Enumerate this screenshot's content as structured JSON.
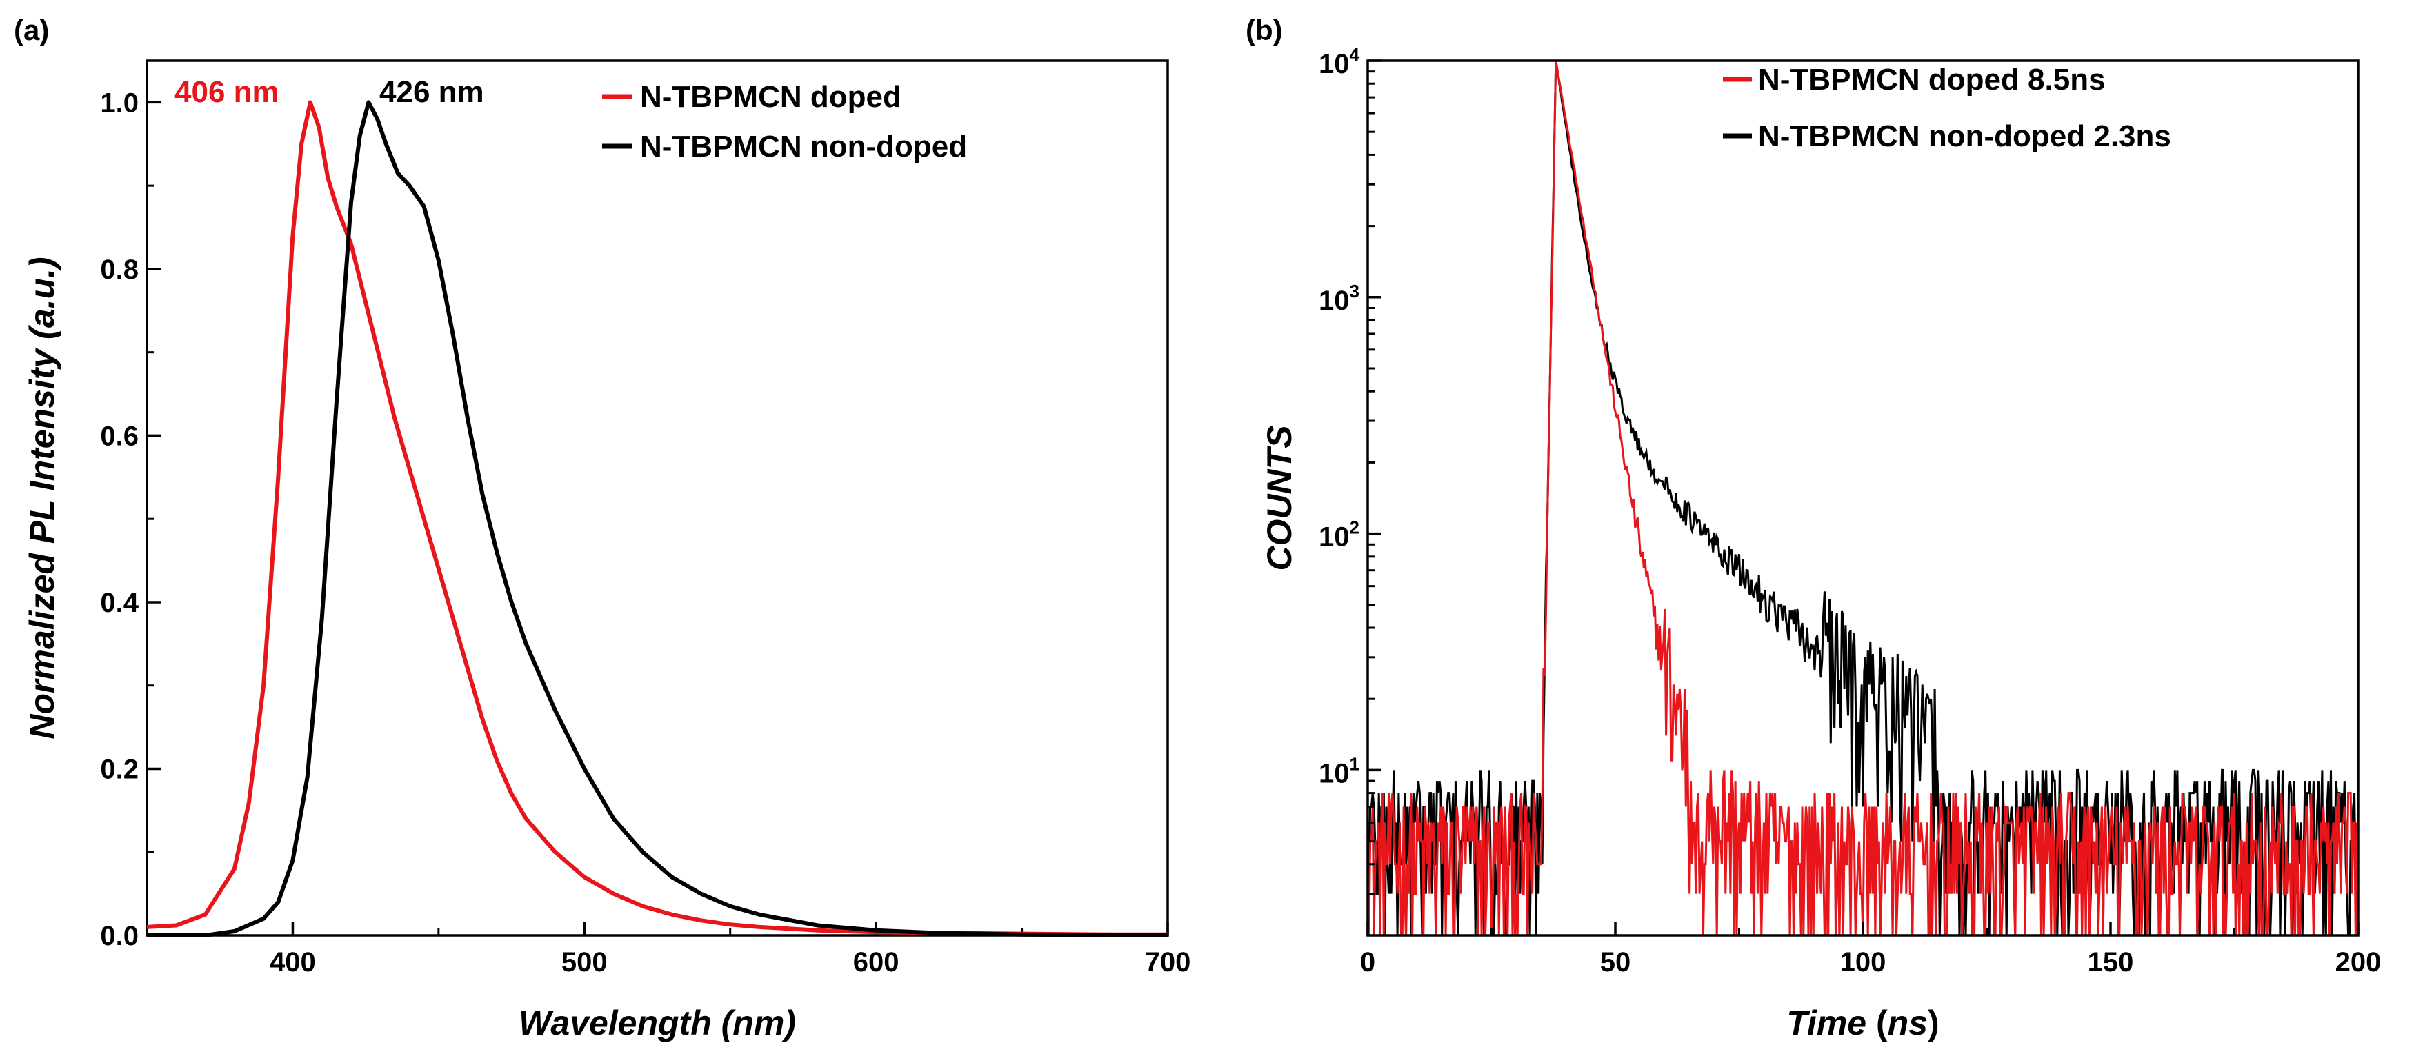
{
  "chart_data": [
    {
      "panel_label": "(a)",
      "type": "line",
      "xlabel": "Wavelength (nm)",
      "ylabel": "Normalized PL Intensity (a.u.)",
      "xlim": [
        350,
        700
      ],
      "ylim": [
        0,
        1.05
      ],
      "xticks": [
        "400",
        "500",
        "600",
        "700"
      ],
      "yticks": [
        "0.0",
        "0.2",
        "0.4",
        "0.6",
        "0.8",
        "1.0"
      ],
      "annotations": [
        {
          "text": "406 nm",
          "color": "#e8151b"
        },
        {
          "text": "426 nm",
          "color": "#000000"
        }
      ],
      "legend": "top-right",
      "series": [
        {
          "name": "N-TBPMCN doped",
          "color": "#e8151b",
          "x": [
            350,
            360,
            370,
            380,
            385,
            390,
            395,
            400,
            403,
            406,
            409,
            412,
            415,
            420,
            425,
            430,
            435,
            440,
            445,
            450,
            455,
            460,
            465,
            470,
            475,
            480,
            490,
            500,
            510,
            520,
            530,
            540,
            550,
            560,
            570,
            580,
            600,
            620,
            650,
            680,
            700
          ],
          "y": [
            0.01,
            0.012,
            0.025,
            0.08,
            0.16,
            0.3,
            0.55,
            0.84,
            0.95,
            1.0,
            0.97,
            0.91,
            0.875,
            0.83,
            0.76,
            0.69,
            0.62,
            0.56,
            0.5,
            0.44,
            0.38,
            0.32,
            0.26,
            0.21,
            0.17,
            0.14,
            0.1,
            0.07,
            0.05,
            0.035,
            0.025,
            0.018,
            0.013,
            0.01,
            0.008,
            0.006,
            0.004,
            0.003,
            0.002,
            0.001,
            0.001
          ]
        },
        {
          "name": "N-TBPMCN non-doped",
          "color": "#000000",
          "x": [
            350,
            370,
            380,
            390,
            395,
            400,
            405,
            410,
            415,
            420,
            423,
            426,
            429,
            432,
            436,
            440,
            445,
            450,
            455,
            460,
            465,
            470,
            475,
            480,
            490,
            500,
            510,
            520,
            530,
            540,
            550,
            560,
            580,
            600,
            620,
            650,
            700
          ],
          "y": [
            0.0,
            0.0,
            0.005,
            0.02,
            0.04,
            0.09,
            0.19,
            0.38,
            0.64,
            0.88,
            0.96,
            1.0,
            0.98,
            0.95,
            0.915,
            0.9,
            0.875,
            0.81,
            0.72,
            0.62,
            0.53,
            0.46,
            0.4,
            0.35,
            0.27,
            0.2,
            0.14,
            0.1,
            0.07,
            0.05,
            0.035,
            0.025,
            0.012,
            0.006,
            0.003,
            0.001,
            0.0
          ]
        }
      ]
    },
    {
      "panel_label": "(b)",
      "type": "line",
      "xlabel_main": "Time",
      "xlabel_unit": "ns",
      "ylabel": "COUNTS",
      "yscale": "log",
      "xlim": [
        0,
        200
      ],
      "ylim": [
        2,
        10000
      ],
      "xticks": [
        "0",
        "50",
        "100",
        "150",
        "200"
      ],
      "yticks": [
        {
          "base": "10",
          "exp": "1",
          "value": 10
        },
        {
          "base": "10",
          "exp": "2",
          "value": 100
        },
        {
          "base": "10",
          "exp": "3",
          "value": 1000
        },
        {
          "base": "10",
          "exp": "4",
          "value": 10000
        }
      ],
      "legend": "top-right",
      "series": [
        {
          "name": "N-TBPMCN doped 8.5ns",
          "color": "#e8151b",
          "background_level": 4,
          "rise_start": 35,
          "peak_time": 38,
          "peak": 10000,
          "decay_tau_ns": 3.5,
          "tail_amplitude": 55,
          "tail_tau_ns": 9
        },
        {
          "name": "N-TBPMCN non-doped 2.3ns",
          "color": "#000000",
          "background_level": 5,
          "rise_start": 35,
          "peak_time": 38,
          "peak": 10000,
          "decay_tau_ns": 3.0,
          "tail_amplitude": 500,
          "tail_tau_ns": 18
        }
      ]
    }
  ]
}
